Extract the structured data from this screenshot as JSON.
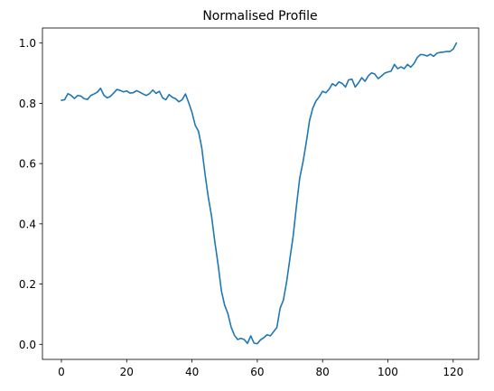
{
  "chart_data": {
    "type": "line",
    "title": "Normalised Profile",
    "xlabel": "",
    "ylabel": "",
    "xlim": [
      -5.8,
      127.8
    ],
    "ylim": [
      -0.05,
      1.05
    ],
    "grid": false,
    "legend": "none",
    "x_ticks": [
      0,
      20,
      40,
      60,
      80,
      100,
      120
    ],
    "y_ticks": [
      0.0,
      0.2,
      0.4,
      0.6,
      0.8,
      1.0
    ],
    "x_tick_labels": [
      "0",
      "20",
      "40",
      "60",
      "80",
      "100",
      "120"
    ],
    "y_tick_labels": [
      "0.0",
      "0.2",
      "0.4",
      "0.6",
      "0.8",
      "1.0"
    ],
    "line_color": "#1f77b4",
    "series": [
      {
        "x": [
          0,
          1,
          2,
          3,
          4,
          5,
          6,
          7,
          8,
          9,
          10,
          11,
          12,
          13,
          14,
          15,
          16,
          17,
          18,
          19,
          20,
          21,
          22,
          23,
          24,
          25,
          26,
          27,
          28,
          29,
          30,
          31,
          32,
          33,
          34,
          35,
          36,
          37,
          38,
          39,
          40,
          41,
          42,
          43,
          44,
          45,
          46,
          47,
          48,
          49,
          50,
          51,
          52,
          53,
          54,
          55,
          56,
          57,
          58,
          59,
          60,
          61,
          62,
          63,
          64,
          65,
          66,
          67,
          68,
          69,
          70,
          71,
          72,
          73,
          74,
          75,
          76,
          77,
          78,
          79,
          80,
          81,
          82,
          83,
          84,
          85,
          86,
          87,
          88,
          89,
          90,
          91,
          92,
          93,
          94,
          95,
          96,
          97,
          98,
          99,
          100,
          101,
          102,
          103,
          104,
          105,
          106,
          107,
          108,
          109,
          110,
          111,
          112,
          113,
          114,
          115,
          116,
          117,
          118,
          119,
          120,
          121
        ],
        "values": [
          0.81,
          0.812,
          0.832,
          0.826,
          0.816,
          0.826,
          0.824,
          0.815,
          0.813,
          0.826,
          0.831,
          0.837,
          0.85,
          0.827,
          0.818,
          0.823,
          0.834,
          0.846,
          0.843,
          0.838,
          0.841,
          0.834,
          0.835,
          0.842,
          0.837,
          0.831,
          0.826,
          0.832,
          0.844,
          0.833,
          0.84,
          0.818,
          0.812,
          0.829,
          0.82,
          0.815,
          0.805,
          0.812,
          0.831,
          0.802,
          0.77,
          0.727,
          0.707,
          0.652,
          0.565,
          0.488,
          0.425,
          0.34,
          0.265,
          0.178,
          0.13,
          0.102,
          0.057,
          0.03,
          0.016,
          0.02,
          0.016,
          0.003,
          0.028,
          0.004,
          0.002,
          0.015,
          0.022,
          0.032,
          0.028,
          0.042,
          0.056,
          0.12,
          0.147,
          0.208,
          0.285,
          0.36,
          0.46,
          0.552,
          0.605,
          0.67,
          0.742,
          0.784,
          0.808,
          0.822,
          0.84,
          0.835,
          0.847,
          0.865,
          0.858,
          0.871,
          0.866,
          0.854,
          0.878,
          0.88,
          0.854,
          0.868,
          0.885,
          0.873,
          0.891,
          0.901,
          0.897,
          0.882,
          0.89,
          0.9,
          0.904,
          0.907,
          0.929,
          0.915,
          0.921,
          0.915,
          0.929,
          0.92,
          0.932,
          0.952,
          0.962,
          0.961,
          0.957,
          0.963,
          0.956,
          0.966,
          0.969,
          0.97,
          0.972,
          0.972,
          0.98,
          1.0
        ]
      }
    ]
  }
}
